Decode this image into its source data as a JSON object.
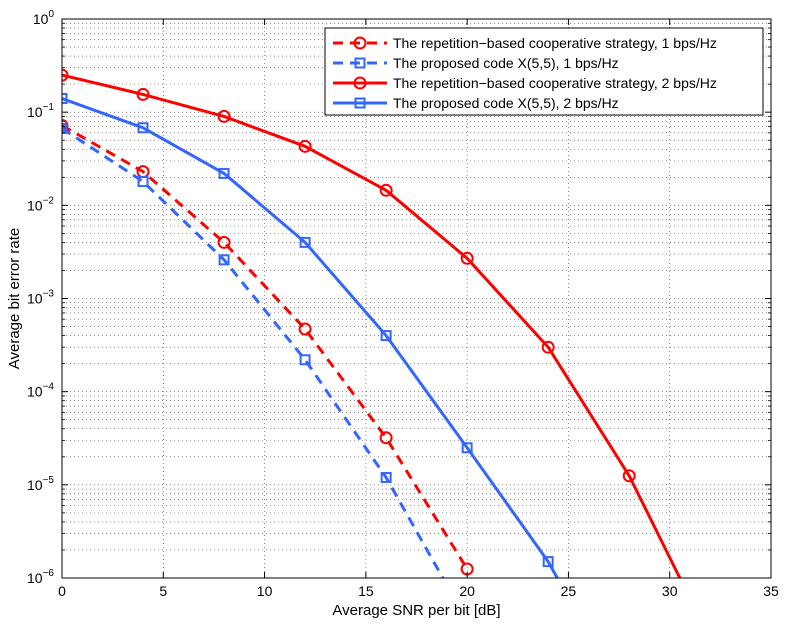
{
  "chart_data": {
    "type": "line",
    "title": "",
    "xlabel": "Average SNR per bit [dB]",
    "ylabel": "Average bit error rate",
    "xlim": [
      0,
      35
    ],
    "ylim": [
      1e-06,
      1
    ],
    "yscale": "log",
    "grid": true,
    "legend_position": "top-right",
    "x_ticks": [
      "0",
      "5",
      "10",
      "15",
      "20",
      "25",
      "30",
      "35"
    ],
    "y_ticks": [
      {
        "base": "10",
        "exp": "0"
      },
      {
        "base": "10",
        "exp": "−1"
      },
      {
        "base": "10",
        "exp": "−2"
      },
      {
        "base": "10",
        "exp": "−3"
      },
      {
        "base": "10",
        "exp": "−4"
      },
      {
        "base": "10",
        "exp": "−5"
      },
      {
        "base": "10",
        "exp": "−6"
      }
    ],
    "series": [
      {
        "name": "The repetition−based cooperative strategy, 1 bps/Hz",
        "color": "#ff0000",
        "style": "dashed",
        "marker": "circle",
        "x": [
          0,
          4,
          8,
          12,
          16,
          20
        ],
        "y": [
          0.072,
          0.023,
          0.004,
          0.00047,
          3.2e-05,
          1.25e-06
        ]
      },
      {
        "name": "The proposed code X(5,5), 1 bps/Hz",
        "color": "#3366ff",
        "style": "dashed",
        "marker": "square",
        "x": [
          0,
          4,
          8,
          12,
          16,
          18.8
        ],
        "y": [
          0.067,
          0.018,
          0.0026,
          0.00022,
          1.2e-05,
          1e-06
        ],
        "markers_shown": 5
      },
      {
        "name": "The repetition−based cooperative strategy, 2 bps/Hz",
        "color": "#ff0000",
        "style": "solid",
        "marker": "circle",
        "x": [
          0,
          4,
          8,
          12,
          16,
          20,
          24,
          28,
          30.5
        ],
        "y": [
          0.25,
          0.155,
          0.09,
          0.043,
          0.0145,
          0.0027,
          0.0003,
          1.25e-05,
          1e-06
        ],
        "markers_shown": 8
      },
      {
        "name": "The proposed code X(5,5), 2 bps/Hz",
        "color": "#3366ff",
        "style": "solid",
        "marker": "square",
        "x": [
          0,
          4,
          8,
          12,
          16,
          20,
          24,
          24.45
        ],
        "y": [
          0.14,
          0.068,
          0.022,
          0.004,
          0.0004,
          2.5e-05,
          1.5e-06,
          1e-06
        ],
        "markers_shown": 7
      }
    ]
  }
}
